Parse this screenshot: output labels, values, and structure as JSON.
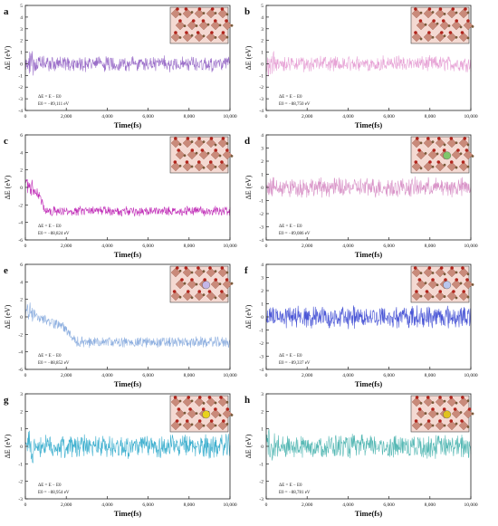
{
  "chart_data": [
    {
      "panel": "a",
      "type": "line",
      "color": "#9b6fc9",
      "xlabel": "Time(fs)",
      "ylabel": "ΔE (eV)",
      "xlim": [
        0,
        10000
      ],
      "ylim": [
        -4,
        5
      ],
      "xticks": [
        "0",
        "2,000",
        "4,000",
        "6,000",
        "8,000",
        "10,000"
      ],
      "yticks": [
        "-4",
        "-3",
        "-2",
        "-1",
        "0",
        "1",
        "2",
        "3",
        "4",
        "5"
      ],
      "annotation": [
        "ΔE = E − E0",
        "E0 = −89,111 eV"
      ],
      "level": 0,
      "amp": 0.55,
      "spike": 1.8,
      "drop": null,
      "has_inset": true,
      "inset_atom": ""
    },
    {
      "panel": "b",
      "type": "line",
      "color": "#e7a3d6",
      "xlabel": "Time(fs)",
      "ylabel": "ΔE (eV)",
      "xlim": [
        0,
        10000
      ],
      "ylim": [
        -4,
        5
      ],
      "xticks": [
        "0",
        "2,000",
        "4,000",
        "6,000",
        "8,000",
        "10,000"
      ],
      "yticks": [
        "-4",
        "-3",
        "-2",
        "-1",
        "0",
        "1",
        "2",
        "3",
        "4",
        "5"
      ],
      "annotation": [
        "ΔE = E − E0",
        "E0 = −88,750 eV"
      ],
      "level": 0,
      "amp": 0.55,
      "spike": 1.9,
      "drop": null,
      "has_inset": true,
      "inset_atom": ""
    },
    {
      "panel": "c",
      "type": "line",
      "color": "#c12fb8",
      "xlabel": "Time(fs)",
      "ylabel": "ΔE (eV)",
      "xlim": [
        0,
        10000
      ],
      "ylim": [
        -6,
        6
      ],
      "xticks": [
        "0",
        "2,000",
        "4,000",
        "6,000",
        "8,000",
        "10,000"
      ],
      "yticks": [
        "-6",
        "-4",
        "-2",
        "0",
        "2",
        "4",
        "6"
      ],
      "annotation": [
        "ΔE = E − E0",
        "E0 = −88,824 eV"
      ],
      "level": -2.7,
      "amp": 0.45,
      "spike": 2.2,
      "drop": 700,
      "has_inset": true,
      "inset_atom": ""
    },
    {
      "panel": "d",
      "type": "line",
      "color": "#d994c8",
      "xlabel": "Time(fs)",
      "ylabel": "ΔE (eV)",
      "xlim": [
        0,
        10000
      ],
      "ylim": [
        -4,
        4
      ],
      "xticks": [
        "0",
        "2,000",
        "4,000",
        "6,000",
        "8,000",
        "10,000"
      ],
      "yticks": [
        "-4",
        "-3",
        "-2",
        "-1",
        "0",
        "1",
        "2",
        "3",
        "4"
      ],
      "annotation": [
        "ΔE = E − E0",
        "E0 = −89,086 eV"
      ],
      "level": 0,
      "amp": 0.6,
      "spike": 1.4,
      "drop": null,
      "has_inset": true,
      "inset_atom": "#7fc76a"
    },
    {
      "panel": "e",
      "type": "line",
      "color": "#8fb0e0",
      "xlabel": "Time(fs)",
      "ylabel": "ΔE (eV)",
      "xlim": [
        0,
        10000
      ],
      "ylim": [
        -6,
        6
      ],
      "xticks": [
        "0",
        "2,000",
        "4,000",
        "6,000",
        "8,000",
        "10,000"
      ],
      "yticks": [
        "-6",
        "-4",
        "-2",
        "0",
        "2",
        "4",
        "6"
      ],
      "annotation": [
        "ΔE = E − E0",
        "E0 = −88,852 eV"
      ],
      "level": -2.9,
      "amp": 0.5,
      "spike": 2.0,
      "drop": 1800,
      "has_inset": true,
      "inset_atom": "#c4b6e8"
    },
    {
      "panel": "f",
      "type": "line",
      "color": "#4b57d6",
      "xlabel": "Time(fs)",
      "ylabel": "ΔE (eV)",
      "xlim": [
        0,
        10000
      ],
      "ylim": [
        -4,
        4
      ],
      "xticks": [
        "0",
        "2,000",
        "4,000",
        "6,000",
        "8,000",
        "10,000"
      ],
      "yticks": [
        "-4",
        "-3",
        "-2",
        "-1",
        "0",
        "1",
        "2",
        "3",
        "4"
      ],
      "annotation": [
        "ΔE = E − E0",
        "E0 = −89,337 eV"
      ],
      "level": 0,
      "amp": 0.7,
      "spike": 1.3,
      "drop": null,
      "has_inset": true,
      "inset_atom": "#b9c6ee"
    },
    {
      "panel": "g",
      "type": "line",
      "color": "#3fb0cf",
      "xlabel": "Time(fs)",
      "ylabel": "ΔE (eV)",
      "xlim": [
        0,
        10000
      ],
      "ylim": [
        -3,
        3
      ],
      "xticks": [
        "0",
        "2,000",
        "4,000",
        "6,000",
        "8,000",
        "10,000"
      ],
      "yticks": [
        "-3",
        "-2",
        "-1",
        "0",
        "1",
        "2",
        "3"
      ],
      "annotation": [
        "ΔE = E − E0",
        "E0 = −88,954 eV"
      ],
      "level": 0,
      "amp": 0.55,
      "spike": 1.8,
      "drop": null,
      "has_inset": true,
      "inset_atom": "#e8d21c"
    },
    {
      "panel": "h",
      "type": "line",
      "color": "#55b8b4",
      "xlabel": "Time(fs)",
      "ylabel": "ΔE (eV)",
      "xlim": [
        0,
        10000
      ],
      "ylim": [
        -3,
        3
      ],
      "xticks": [
        "0",
        "2,000",
        "4,000",
        "6,000",
        "8,000",
        "10,000"
      ],
      "yticks": [
        "-3",
        "-2",
        "-1",
        "0",
        "1",
        "2",
        "3"
      ],
      "annotation": [
        "ΔE = E − E0",
        "E0 = −88,781 eV"
      ],
      "level": 0,
      "amp": 0.55,
      "spike": 1.5,
      "drop": null,
      "has_inset": true,
      "inset_atom": "#e0c21e"
    }
  ]
}
